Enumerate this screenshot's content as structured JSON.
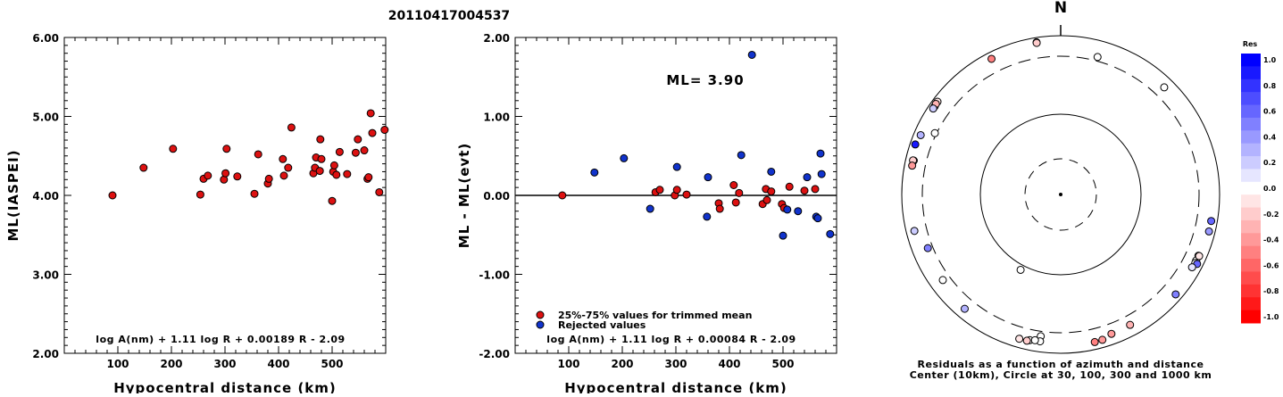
{
  "title": "20110417004537",
  "chart_data": [
    {
      "type": "scatter",
      "ylabel": "ML(IASPEI)",
      "xlabel": "Hypocentral distance (km)",
      "xlim": [
        0,
        600
      ],
      "ylim": [
        2.0,
        6.0
      ],
      "xticks": [
        "100",
        "200",
        "300",
        "400",
        "500"
      ],
      "yticks": [
        "2.00",
        "3.00",
        "4.00",
        "5.00",
        "6.00"
      ],
      "formula": "log A(nm) + 1.11 log R + 0.00189 R - 2.09",
      "points": [
        [
          90,
          4.0
        ],
        [
          148,
          4.35
        ],
        [
          203,
          4.59
        ],
        [
          254,
          4.01
        ],
        [
          260,
          4.21
        ],
        [
          268,
          4.25
        ],
        [
          298,
          4.2
        ],
        [
          301,
          4.28
        ],
        [
          303,
          4.59
        ],
        [
          323,
          4.24
        ],
        [
          355,
          4.02
        ],
        [
          362,
          4.52
        ],
        [
          380,
          4.15
        ],
        [
          382,
          4.21
        ],
        [
          408,
          4.46
        ],
        [
          410,
          4.25
        ],
        [
          418,
          4.35
        ],
        [
          424,
          4.86
        ],
        [
          465,
          4.28
        ],
        [
          468,
          4.35
        ],
        [
          470,
          4.48
        ],
        [
          477,
          4.31
        ],
        [
          478,
          4.71
        ],
        [
          480,
          4.46
        ],
        [
          500,
          3.93
        ],
        [
          502,
          4.3
        ],
        [
          504,
          4.38
        ],
        [
          508,
          4.26
        ],
        [
          514,
          4.55
        ],
        [
          528,
          4.27
        ],
        [
          544,
          4.54
        ],
        [
          548,
          4.71
        ],
        [
          560,
          4.57
        ],
        [
          566,
          4.21
        ],
        [
          568,
          4.23
        ],
        [
          572,
          5.04
        ],
        [
          575,
          4.79
        ],
        [
          588,
          4.04
        ],
        [
          598,
          4.83
        ]
      ]
    },
    {
      "type": "scatter",
      "ylabel": "ML - ML(evt)",
      "xlabel": "Hypocentral distance (km)",
      "xlim": [
        0,
        600
      ],
      "ylim": [
        -2.0,
        2.0
      ],
      "xticks": [
        "100",
        "200",
        "300",
        "400",
        "500"
      ],
      "yticks": [
        "-2.00",
        "-1.00",
        "0.00",
        "1.00",
        "2.00"
      ],
      "ml_label": "ML= 3.90",
      "legend": [
        "25%-75% values for trimmed mean",
        "Rejected values"
      ],
      "formula": "log A(nm) + 1.11 log R + 0.00084 R - 2.09",
      "series": [
        {
          "name": "25%-75% values for trimmed mean",
          "color": "#dd1111",
          "points": [
            [
              88,
              0.0
            ],
            [
              262,
              0.04
            ],
            [
              270,
              0.07
            ],
            [
              298,
              0.0
            ],
            [
              302,
              0.07
            ],
            [
              320,
              0.01
            ],
            [
              380,
              -0.1
            ],
            [
              382,
              -0.17
            ],
            [
              408,
              0.13
            ],
            [
              412,
              -0.09
            ],
            [
              418,
              0.03
            ],
            [
              462,
              -0.11
            ],
            [
              468,
              0.08
            ],
            [
              470,
              -0.06
            ],
            [
              478,
              0.05
            ],
            [
              498,
              -0.11
            ],
            [
              502,
              -0.16
            ],
            [
              512,
              0.11
            ],
            [
              540,
              0.06
            ],
            [
              560,
              0.08
            ]
          ]
        },
        {
          "name": "Rejected values",
          "color": "#1133cc",
          "points": [
            [
              148,
              0.29
            ],
            [
              203,
              0.47
            ],
            [
              252,
              -0.17
            ],
            [
              302,
              0.36
            ],
            [
              358,
              -0.27
            ],
            [
              360,
              0.23
            ],
            [
              422,
              0.51
            ],
            [
              442,
              1.78
            ],
            [
              478,
              0.3
            ],
            [
              500,
              -0.51
            ],
            [
              508,
              -0.18
            ],
            [
              528,
              -0.2
            ],
            [
              545,
              0.23
            ],
            [
              562,
              -0.27
            ],
            [
              565,
              -0.29
            ],
            [
              570,
              0.53
            ],
            [
              572,
              0.27
            ],
            [
              588,
              -0.49
            ]
          ]
        }
      ]
    },
    {
      "type": "polar-scatter",
      "north_label": "N",
      "caption_line1": "Residuals as a function of azimuth and distance",
      "caption_line2": "Center (10km), Circle at 30, 100, 300 and 1000 km",
      "colorbar_title": "Res",
      "colorbar_ticks": [
        "1.0",
        "0.8",
        "0.6",
        "0.4",
        "0.2",
        "0.0",
        "-0.2",
        "-0.4",
        "-0.6",
        "-0.8",
        "-1.0"
      ],
      "stations": [
        {
          "az": 15,
          "dist": 380,
          "res": 0.0
        },
        {
          "az": 44,
          "dist": 560,
          "res": 0.0
        },
        {
          "az": 208,
          "dist": 110,
          "res": 0.0
        },
        {
          "az": 234,
          "dist": 460,
          "res": 0.0
        },
        {
          "az": 283,
          "dist": 620,
          "res": 0.0
        },
        {
          "az": 296,
          "dist": 330,
          "res": 0.0
        },
        {
          "az": 305,
          "dist": 740,
          "res": 0.0
        },
        {
          "az": 114,
          "dist": 620,
          "res": 0.0
        },
        {
          "az": 116,
          "dist": 620,
          "res": 0.0
        },
        {
          "az": 117,
          "dist": 630,
          "res": 0.0
        },
        {
          "az": 188,
          "dist": 400,
          "res": 0.0
        },
        {
          "az": 188,
          "dist": 540,
          "res": 0.0
        },
        {
          "az": 192,
          "dist": 560,
          "res": 0.0
        },
        {
          "az": 190,
          "dist": 530,
          "res": 0.0
        },
        {
          "az": 351,
          "dist": 760,
          "res": 0.0
        },
        {
          "az": 351,
          "dist": 730,
          "res": -0.2
        },
        {
          "az": 333,
          "dist": 680,
          "res": -0.5
        },
        {
          "az": 307,
          "dist": 760,
          "res": -0.1
        },
        {
          "az": 306,
          "dist": 760,
          "res": -0.3
        },
        {
          "az": 304,
          "dist": 740,
          "res": 0.2
        },
        {
          "az": 293,
          "dist": 670,
          "res": 0.3
        },
        {
          "az": 289,
          "dist": 740,
          "res": 0.9
        },
        {
          "az": 283,
          "dist": 650,
          "res": -0.2
        },
        {
          "az": 281,
          "dist": 640,
          "res": -0.4
        },
        {
          "az": 256,
          "dist": 620,
          "res": 0.2
        },
        {
          "az": 248,
          "dist": 400,
          "res": 0.5
        },
        {
          "az": 220,
          "dist": 570,
          "res": 0.3
        },
        {
          "az": 100,
          "dist": 700,
          "res": 0.6
        },
        {
          "az": 104,
          "dist": 700,
          "res": 0.4
        },
        {
          "az": 117,
          "dist": 710,
          "res": 0.6
        },
        {
          "az": 119,
          "dist": 600,
          "res": 0.1
        },
        {
          "az": 114,
          "dist": 650,
          "res": -0.1
        },
        {
          "az": 131,
          "dist": 680,
          "res": 0.5
        },
        {
          "az": 152,
          "dist": 520,
          "res": -0.3
        },
        {
          "az": 160,
          "dist": 540,
          "res": -0.4
        },
        {
          "az": 164,
          "dist": 640,
          "res": -0.4
        },
        {
          "az": 167,
          "dist": 650,
          "res": -0.5
        },
        {
          "az": 193,
          "dist": 600,
          "res": -0.2
        },
        {
          "az": 196,
          "dist": 600,
          "res": -0.1
        }
      ]
    }
  ]
}
